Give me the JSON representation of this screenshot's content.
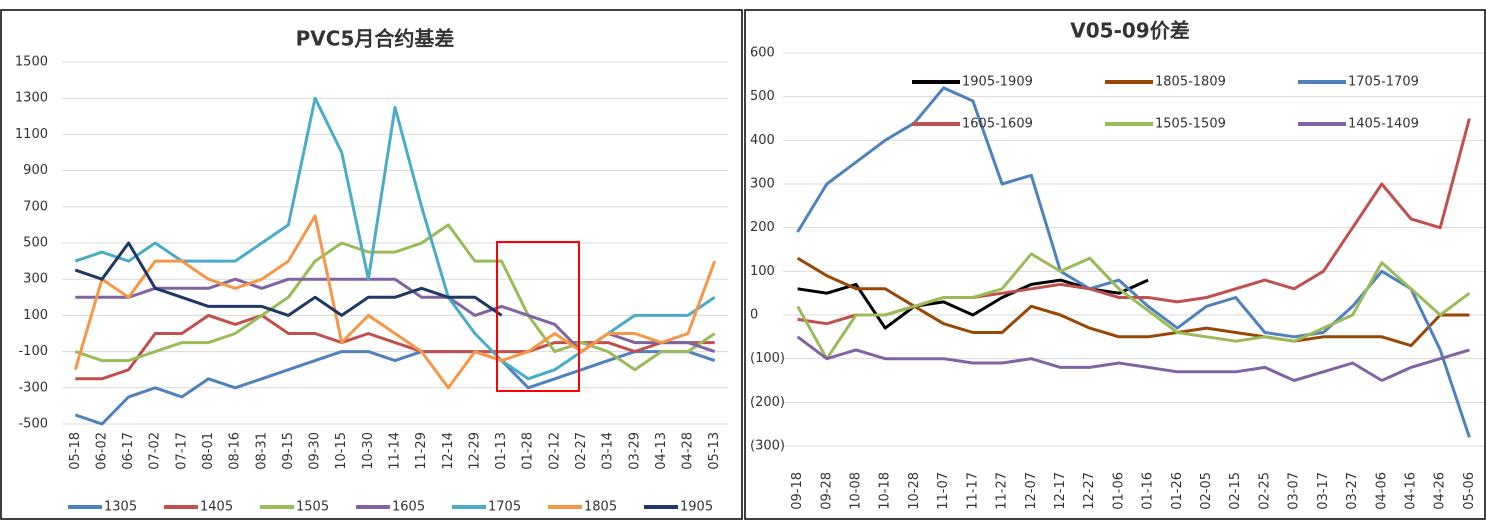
{
  "chart_data": [
    {
      "type": "line",
      "title": "PVC5月合约基差",
      "legend": "bottom",
      "grid": true,
      "categories": [
        "05-18",
        "06-02",
        "06-17",
        "07-02",
        "07-17",
        "08-01",
        "08-16",
        "08-31",
        "09-15",
        "09-30",
        "10-15",
        "10-30",
        "11-14",
        "11-29",
        "12-14",
        "12-29",
        "01-13",
        "01-28",
        "02-12",
        "02-27",
        "03-14",
        "03-29",
        "04-13",
        "04-28",
        "05-13"
      ],
      "ylim": [
        -500,
        1500
      ],
      "yticks": [
        -500,
        -300,
        -100,
        100,
        300,
        500,
        700,
        900,
        1100,
        1300,
        1500
      ],
      "series": [
        {
          "name": "1305",
          "color": "#4f81bd",
          "values": [
            -450,
            -500,
            -350,
            -300,
            -350,
            -250,
            -300,
            -250,
            -200,
            -150,
            -100,
            -100,
            -150,
            -100,
            -100,
            -100,
            -150,
            -300,
            -250,
            -200,
            -150,
            -100,
            -100,
            -100,
            -150
          ]
        },
        {
          "name": "1405",
          "color": "#c0504d",
          "values": [
            -250,
            -250,
            -200,
            0,
            0,
            100,
            50,
            100,
            0,
            0,
            -50,
            0,
            -50,
            -100,
            -100,
            -100,
            -100,
            -100,
            -50,
            -50,
            -50,
            -100,
            -50,
            -50,
            -50
          ]
        },
        {
          "name": "1505",
          "color": "#9bbb59",
          "values": [
            -100,
            -150,
            -150,
            -100,
            -50,
            -50,
            0,
            100,
            200,
            400,
            500,
            450,
            450,
            500,
            600,
            400,
            400,
            100,
            -100,
            -50,
            -100,
            -200,
            -100,
            -100,
            0
          ]
        },
        {
          "name": "1605",
          "color": "#8064a2",
          "values": [
            200,
            200,
            200,
            250,
            250,
            250,
            300,
            250,
            300,
            300,
            300,
            300,
            300,
            200,
            200,
            100,
            150,
            100,
            50,
            -100,
            0,
            -50,
            -50,
            -50,
            -100
          ]
        },
        {
          "name": "1705",
          "color": "#4bacc6",
          "values": [
            400,
            450,
            400,
            500,
            400,
            400,
            400,
            500,
            600,
            1300,
            1000,
            300,
            1250,
            700,
            200,
            0,
            -150,
            -250,
            -200,
            -100,
            0,
            100,
            100,
            100,
            200
          ]
        },
        {
          "name": "1805",
          "color": "#f79646",
          "values": [
            -200,
            300,
            200,
            400,
            400,
            300,
            250,
            300,
            400,
            650,
            -50,
            100,
            0,
            -100,
            -300,
            -100,
            -150,
            -100,
            0,
            -100,
            0,
            0,
            -50,
            0,
            400
          ]
        },
        {
          "name": "1905",
          "color": "#1f3864",
          "values": [
            350,
            300,
            500,
            250,
            200,
            150,
            150,
            150,
            100,
            200,
            100,
            200,
            200,
            250,
            200,
            200,
            100,
            null,
            null,
            null,
            null,
            null,
            null,
            null,
            null
          ]
        }
      ]
    },
    {
      "type": "line",
      "title": "V05-09价差",
      "legend": "top",
      "grid": true,
      "negative_tick_color": "#c00000",
      "categories": [
        "09-18",
        "09-28",
        "10-08",
        "10-18",
        "10-28",
        "11-07",
        "11-17",
        "11-27",
        "12-07",
        "12-17",
        "12-27",
        "01-06",
        "01-16",
        "01-26",
        "02-05",
        "02-15",
        "02-25",
        "03-07",
        "03-17",
        "03-27",
        "04-06",
        "04-16",
        "04-26",
        "05-06"
      ],
      "ylim": [
        -300,
        600
      ],
      "yticks": [
        {
          "value": -300,
          "label": "(300)"
        },
        {
          "value": -200,
          "label": "(200)"
        },
        {
          "value": -100,
          "label": "(100)"
        },
        0,
        100,
        200,
        300,
        400,
        500,
        600
      ],
      "series": [
        {
          "name": "1905-1909",
          "color": "#000000",
          "values": [
            60,
            50,
            70,
            -30,
            20,
            30,
            0,
            40,
            70,
            80,
            60,
            50,
            80,
            null,
            null,
            null,
            null,
            null,
            null,
            null,
            null,
            null,
            null,
            null
          ]
        },
        {
          "name": "1805-1809",
          "color": "#974706",
          "values": [
            130,
            90,
            60,
            60,
            20,
            -20,
            -40,
            -40,
            20,
            0,
            -30,
            -50,
            -50,
            -40,
            -30,
            -40,
            -50,
            -60,
            -50,
            -50,
            -50,
            -70,
            0,
            0
          ]
        },
        {
          "name": "1705-1709",
          "color": "#4f81bd",
          "values": [
            190,
            300,
            350,
            400,
            440,
            520,
            490,
            300,
            320,
            100,
            60,
            80,
            20,
            -30,
            20,
            40,
            -40,
            -50,
            -40,
            20,
            100,
            60,
            -80,
            -280
          ]
        },
        {
          "name": "1605-1609",
          "color": "#c0504d",
          "values": [
            -10,
            -20,
            0,
            0,
            20,
            40,
            40,
            50,
            60,
            70,
            60,
            40,
            40,
            30,
            40,
            60,
            80,
            60,
            100,
            200,
            300,
            220,
            200,
            450
          ]
        },
        {
          "name": "1505-1509",
          "color": "#9bbb59",
          "values": [
            20,
            -100,
            0,
            0,
            20,
            40,
            40,
            60,
            140,
            100,
            130,
            60,
            10,
            -40,
            -50,
            -60,
            -50,
            -60,
            -30,
            0,
            120,
            60,
            0,
            50
          ]
        },
        {
          "name": "1405-1409",
          "color": "#8064a2",
          "values": [
            -50,
            -100,
            -80,
            -100,
            -100,
            -100,
            -110,
            -110,
            -100,
            -120,
            -120,
            -110,
            -120,
            -130,
            -130,
            -130,
            -120,
            -150,
            -130,
            -110,
            -150,
            -120,
            -100,
            -80
          ]
        }
      ]
    }
  ]
}
